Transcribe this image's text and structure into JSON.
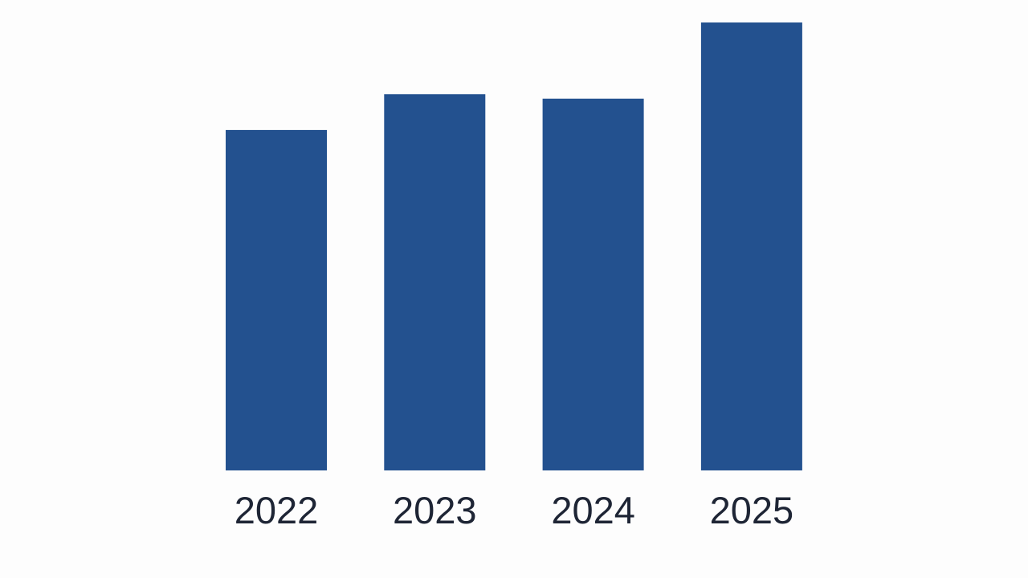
{
  "chart_data": {
    "type": "bar",
    "categories": [
      "2022",
      "2023",
      "2024",
      "2025"
    ],
    "values": [
      76,
      84,
      83,
      100
    ],
    "value_scale": "relative (no value axis printed; 2025 = 100)",
    "title": "",
    "xlabel": "",
    "ylabel": "",
    "ylim": [
      0,
      100
    ],
    "grid": false,
    "legend": "none",
    "bar_color": "#23518f",
    "label_color": "#1e2535"
  }
}
